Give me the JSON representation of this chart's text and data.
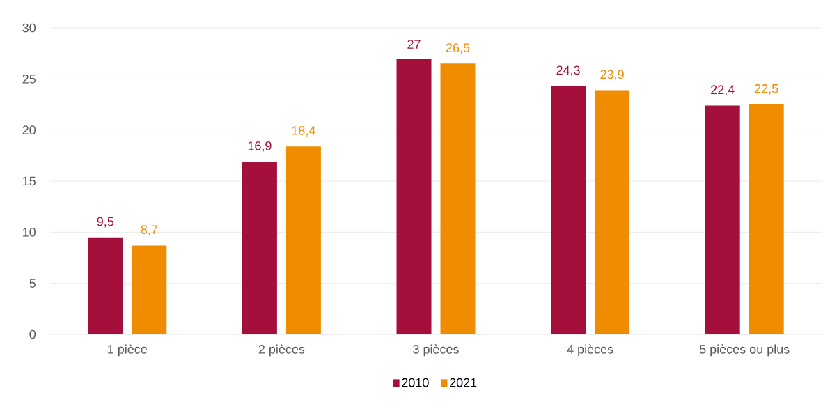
{
  "chart_data": {
    "type": "bar",
    "categories": [
      "1 pièce",
      "2 pièces",
      "3 pièces",
      "4 pièces",
      "5 pièces ou plus"
    ],
    "series": [
      {
        "name": "2010",
        "color": "#a50f3c",
        "values": [
          9.5,
          16.9,
          27,
          24.3,
          22.4
        ],
        "value_labels": [
          "9,5",
          "16,9",
          "27",
          "24,3",
          "22,4"
        ]
      },
      {
        "name": "2021",
        "color": "#f08c00",
        "values": [
          8.7,
          18.4,
          26.5,
          23.9,
          22.5
        ],
        "value_labels": [
          "8,7",
          "18,4",
          "26,5",
          "23,9",
          "22,5"
        ]
      }
    ],
    "ylim": [
      0,
      30
    ],
    "yticks": [
      0,
      5,
      10,
      15,
      20,
      25,
      30
    ],
    "grid": "y",
    "legend": "bottom"
  }
}
